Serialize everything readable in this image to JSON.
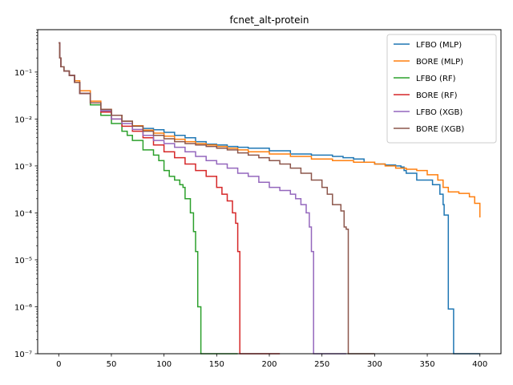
{
  "chart_data": {
    "type": "line",
    "title": "fcnet_alt-protein",
    "xlabel": "",
    "ylabel": "",
    "xlim": [
      -20,
      420
    ],
    "ylim": [
      1e-07,
      0.8
    ],
    "yscale": "log",
    "xticks": [
      0,
      50,
      100,
      150,
      200,
      250,
      300,
      350,
      400
    ],
    "xtick_labels": [
      "0",
      "50",
      "100",
      "150",
      "200",
      "250",
      "300",
      "350",
      "400"
    ],
    "yticks": [
      1e-07,
      1e-06,
      1e-05,
      0.0001,
      0.001,
      0.01,
      0.1
    ],
    "ytick_labels": [
      "10⁻⁷",
      "10⁻⁶",
      "10⁻⁵",
      "10⁻⁴",
      "10⁻³",
      "10⁻²",
      "10⁻¹"
    ],
    "grid": false,
    "legend_position": "top-right",
    "series": [
      {
        "name": "LFBO (MLP)",
        "color": "#1f77b4",
        "points": [
          [
            0,
            0.42
          ],
          [
            1,
            0.2
          ],
          [
            2,
            0.13
          ],
          [
            5,
            0.105
          ],
          [
            10,
            0.085
          ],
          [
            15,
            0.06
          ],
          [
            20,
            0.035
          ],
          [
            30,
            0.022
          ],
          [
            40,
            0.015
          ],
          [
            50,
            0.012
          ],
          [
            60,
            0.009
          ],
          [
            70,
            0.0072
          ],
          [
            80,
            0.0063
          ],
          [
            90,
            0.0059
          ],
          [
            100,
            0.0052
          ],
          [
            110,
            0.0045
          ],
          [
            120,
            0.004
          ],
          [
            130,
            0.0033
          ],
          [
            140,
            0.0029
          ],
          [
            150,
            0.0028
          ],
          [
            160,
            0.0026
          ],
          [
            170,
            0.0025
          ],
          [
            180,
            0.0024
          ],
          [
            200,
            0.0021
          ],
          [
            220,
            0.0018
          ],
          [
            240,
            0.0017
          ],
          [
            260,
            0.0016
          ],
          [
            270,
            0.0015
          ],
          [
            280,
            0.0014
          ],
          [
            290,
            0.0012
          ],
          [
            300,
            0.0011
          ],
          [
            310,
            0.00105
          ],
          [
            320,
            0.001
          ],
          [
            325,
            0.00095
          ],
          [
            328,
            0.0008
          ],
          [
            330,
            0.0007
          ],
          [
            340,
            0.0005
          ],
          [
            350,
            0.0005
          ],
          [
            355,
            0.0004
          ],
          [
            362,
            0.00025
          ],
          [
            365,
            0.00015
          ],
          [
            366,
            9e-05
          ],
          [
            370,
            9e-07
          ],
          [
            375,
            1e-07
          ],
          [
            400,
            1e-07
          ]
        ]
      },
      {
        "name": "BORE (MLP)",
        "color": "#ff7f0e",
        "points": [
          [
            0,
            0.42
          ],
          [
            1,
            0.2
          ],
          [
            2,
            0.13
          ],
          [
            5,
            0.105
          ],
          [
            10,
            0.085
          ],
          [
            15,
            0.065
          ],
          [
            20,
            0.04
          ],
          [
            30,
            0.024
          ],
          [
            40,
            0.016
          ],
          [
            50,
            0.012
          ],
          [
            60,
            0.009
          ],
          [
            70,
            0.0072
          ],
          [
            80,
            0.0058
          ],
          [
            90,
            0.005
          ],
          [
            100,
            0.0043
          ],
          [
            110,
            0.0037
          ],
          [
            120,
            0.0033
          ],
          [
            130,
            0.003
          ],
          [
            140,
            0.0028
          ],
          [
            150,
            0.0026
          ],
          [
            160,
            0.0024
          ],
          [
            170,
            0.0022
          ],
          [
            180,
            0.002
          ],
          [
            200,
            0.0018
          ],
          [
            220,
            0.0016
          ],
          [
            240,
            0.0014
          ],
          [
            260,
            0.0013
          ],
          [
            280,
            0.0012
          ],
          [
            300,
            0.0011
          ],
          [
            310,
            0.001
          ],
          [
            320,
            0.0009
          ],
          [
            330,
            0.00085
          ],
          [
            340,
            0.0008
          ],
          [
            350,
            0.00065
          ],
          [
            360,
            0.0005
          ],
          [
            365,
            0.00035
          ],
          [
            370,
            0.00028
          ],
          [
            380,
            0.00026
          ],
          [
            390,
            0.00022
          ],
          [
            395,
            0.00016
          ],
          [
            400,
            8e-05
          ]
        ]
      },
      {
        "name": "LFBO (RF)",
        "color": "#2ca02c",
        "points": [
          [
            0,
            0.42
          ],
          [
            1,
            0.2
          ],
          [
            2,
            0.13
          ],
          [
            5,
            0.105
          ],
          [
            10,
            0.085
          ],
          [
            15,
            0.06
          ],
          [
            20,
            0.035
          ],
          [
            30,
            0.02
          ],
          [
            40,
            0.012
          ],
          [
            50,
            0.008
          ],
          [
            60,
            0.0055
          ],
          [
            65,
            0.0045
          ],
          [
            70,
            0.0035
          ],
          [
            80,
            0.0022
          ],
          [
            90,
            0.0017
          ],
          [
            95,
            0.0013
          ],
          [
            100,
            0.0008
          ],
          [
            105,
            0.0006
          ],
          [
            110,
            0.0005
          ],
          [
            115,
            0.0004
          ],
          [
            118,
            0.00035
          ],
          [
            120,
            0.0002
          ],
          [
            125,
            0.0001
          ],
          [
            128,
            4e-05
          ],
          [
            130,
            1.5e-05
          ],
          [
            132,
            1e-06
          ],
          [
            135,
            1e-07
          ],
          [
            170,
            1e-07
          ]
        ]
      },
      {
        "name": "BORE (RF)",
        "color": "#d62728",
        "points": [
          [
            0,
            0.42
          ],
          [
            1,
            0.2
          ],
          [
            2,
            0.13
          ],
          [
            5,
            0.105
          ],
          [
            10,
            0.085
          ],
          [
            15,
            0.06
          ],
          [
            20,
            0.035
          ],
          [
            30,
            0.022
          ],
          [
            40,
            0.014
          ],
          [
            50,
            0.01
          ],
          [
            60,
            0.007
          ],
          [
            70,
            0.0055
          ],
          [
            80,
            0.004
          ],
          [
            90,
            0.0028
          ],
          [
            100,
            0.002
          ],
          [
            110,
            0.0015
          ],
          [
            120,
            0.0011
          ],
          [
            130,
            0.0008
          ],
          [
            140,
            0.0006
          ],
          [
            150,
            0.00035
          ],
          [
            155,
            0.00025
          ],
          [
            160,
            0.00018
          ],
          [
            165,
            0.0001
          ],
          [
            168,
            6e-05
          ],
          [
            170,
            1.5e-05
          ],
          [
            172,
            1e-07
          ],
          [
            210,
            1e-07
          ]
        ]
      },
      {
        "name": "LFBO (XGB)",
        "color": "#9467bd",
        "points": [
          [
            0,
            0.42
          ],
          [
            1,
            0.2
          ],
          [
            2,
            0.13
          ],
          [
            5,
            0.105
          ],
          [
            10,
            0.085
          ],
          [
            15,
            0.06
          ],
          [
            20,
            0.035
          ],
          [
            30,
            0.022
          ],
          [
            40,
            0.015
          ],
          [
            50,
            0.01
          ],
          [
            60,
            0.008
          ],
          [
            70,
            0.006
          ],
          [
            80,
            0.0045
          ],
          [
            90,
            0.0035
          ],
          [
            100,
            0.003
          ],
          [
            110,
            0.0025
          ],
          [
            120,
            0.002
          ],
          [
            130,
            0.0016
          ],
          [
            140,
            0.0013
          ],
          [
            150,
            0.0011
          ],
          [
            160,
            0.0009
          ],
          [
            170,
            0.0007
          ],
          [
            180,
            0.0006
          ],
          [
            190,
            0.00045
          ],
          [
            200,
            0.00035
          ],
          [
            210,
            0.0003
          ],
          [
            220,
            0.00025
          ],
          [
            225,
            0.0002
          ],
          [
            230,
            0.00015
          ],
          [
            235,
            0.0001
          ],
          [
            238,
            5e-05
          ],
          [
            240,
            1.5e-05
          ],
          [
            242,
            1e-07
          ],
          [
            273,
            1e-07
          ]
        ]
      },
      {
        "name": "BORE (XGB)",
        "color": "#8c564b",
        "points": [
          [
            0,
            0.42
          ],
          [
            1,
            0.2
          ],
          [
            2,
            0.13
          ],
          [
            5,
            0.105
          ],
          [
            10,
            0.085
          ],
          [
            15,
            0.06
          ],
          [
            20,
            0.035
          ],
          [
            30,
            0.022
          ],
          [
            40,
            0.016
          ],
          [
            50,
            0.012
          ],
          [
            60,
            0.009
          ],
          [
            70,
            0.007
          ],
          [
            80,
            0.0055
          ],
          [
            90,
            0.0045
          ],
          [
            100,
            0.0038
          ],
          [
            110,
            0.0033
          ],
          [
            120,
            0.003
          ],
          [
            130,
            0.0028
          ],
          [
            140,
            0.0026
          ],
          [
            150,
            0.0024
          ],
          [
            160,
            0.0022
          ],
          [
            170,
            0.0019
          ],
          [
            180,
            0.0017
          ],
          [
            190,
            0.0015
          ],
          [
            200,
            0.0013
          ],
          [
            210,
            0.0011
          ],
          [
            220,
            0.0009
          ],
          [
            230,
            0.0007
          ],
          [
            240,
            0.0005
          ],
          [
            250,
            0.00035
          ],
          [
            255,
            0.00025
          ],
          [
            260,
            0.00015
          ],
          [
            268,
            0.00011
          ],
          [
            271,
            5e-05
          ],
          [
            273,
            4.5e-05
          ],
          [
            275,
            1e-07
          ],
          [
            300,
            1e-07
          ]
        ]
      }
    ]
  }
}
